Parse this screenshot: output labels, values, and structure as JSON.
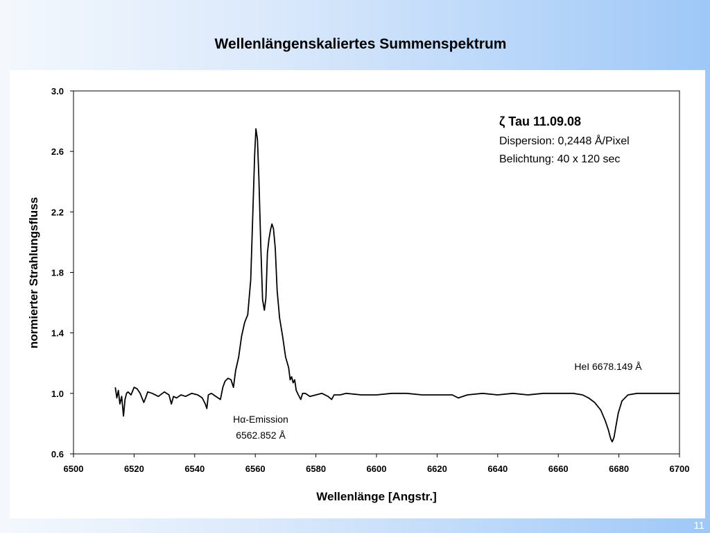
{
  "slide": {
    "title": "Wellenlängenskaliertes Summenspektrum",
    "page_number": "11"
  },
  "chart_data": {
    "type": "line",
    "xlabel": "Wellenlänge [Angstr.]",
    "ylabel": "normierter Strahlungsfluss",
    "xlim": [
      6500,
      6700
    ],
    "ylim": [
      0.6,
      3.0
    ],
    "x_ticks": [
      "6500",
      "6520",
      "6540",
      "6560",
      "6580",
      "6600",
      "6620",
      "6640",
      "6660",
      "6680",
      "6700"
    ],
    "y_ticks": [
      "0.6",
      "1.0",
      "1.4",
      "1.8",
      "2.2",
      "2.6",
      "3.0"
    ],
    "grid": false,
    "legend": "none",
    "line_color": "#000000",
    "info_box": {
      "line1": "ζ Tau 11.09.08",
      "line2": "Dispersion: 0,2448 Å/Pixel",
      "line3": "Belichtung: 40 x 120 sec"
    },
    "annotations": {
      "halpha_line1": "Hα-Emission",
      "halpha_line2": "6562.852 Å",
      "hei": "HeI 6678.149 Å"
    },
    "series": [
      {
        "x": [
          6513.8,
          6514.3,
          6514.8,
          6515.3,
          6515.9,
          6516.5,
          6517.0,
          6517.5,
          6518.0,
          6519.0,
          6520.0,
          6521.0,
          6522.0,
          6523.2,
          6523.8,
          6524.5,
          6526.0,
          6528.0,
          6530.0,
          6531.5,
          6532.3,
          6533.0,
          6534.0,
          6535.5,
          6537.0,
          6539.0,
          6541.0,
          6542.5,
          6543.5,
          6544.0,
          6544.5,
          6545.5,
          6547.0,
          6548.5,
          6549.3,
          6550.0,
          6551.0,
          6552.0,
          6552.8,
          6553.5,
          6554.5,
          6555.5,
          6556.5,
          6557.5,
          6558.5,
          6559.2,
          6559.8,
          6560.2,
          6560.7,
          6561.2,
          6561.8,
          6562.4,
          6563.0,
          6563.5,
          6564.0,
          6564.5,
          6565.0,
          6565.5,
          6566.0,
          6566.6,
          6567.2,
          6568.0,
          6569.0,
          6570.0,
          6571.0,
          6571.5,
          6572.0,
          6572.5,
          6573.0,
          6573.5,
          6574.2,
          6575.0,
          6575.6,
          6576.5,
          6578.0,
          6580.0,
          6582.0,
          6584.0,
          6585.2,
          6586.0,
          6588.0,
          6590.0,
          6595.0,
          6600.0,
          6605.0,
          6610.0,
          6615.0,
          6620.0,
          6625.0,
          6627.0,
          6630.0,
          6635.0,
          6640.0,
          6645.0,
          6650.0,
          6655.0,
          6660.0,
          6665.0,
          6668.0,
          6670.0,
          6672.0,
          6674.0,
          6675.5,
          6676.5,
          6677.3,
          6677.8,
          6678.4,
          6679.0,
          6679.8,
          6681.0,
          6683.0,
          6686.0,
          6690.0,
          6695.0,
          6700.0
        ],
        "y": [
          1.04,
          0.97,
          1.02,
          0.93,
          0.98,
          0.85,
          0.96,
          1.0,
          1.01,
          0.99,
          1.04,
          1.03,
          1.0,
          0.94,
          0.97,
          1.01,
          1.0,
          0.98,
          1.01,
          0.99,
          0.93,
          0.98,
          0.97,
          0.99,
          0.98,
          1.0,
          0.99,
          0.97,
          0.93,
          0.9,
          0.99,
          1.0,
          0.98,
          0.96,
          1.04,
          1.08,
          1.1,
          1.09,
          1.04,
          1.15,
          1.24,
          1.38,
          1.47,
          1.52,
          1.75,
          2.2,
          2.58,
          2.75,
          2.68,
          2.42,
          1.98,
          1.62,
          1.55,
          1.63,
          1.93,
          2.02,
          2.08,
          2.12,
          2.09,
          1.96,
          1.68,
          1.5,
          1.38,
          1.24,
          1.17,
          1.09,
          1.11,
          1.07,
          1.09,
          1.02,
          0.99,
          0.96,
          1.0,
          1.0,
          0.98,
          0.99,
          1.0,
          0.98,
          0.96,
          0.99,
          0.99,
          1.0,
          0.99,
          0.99,
          1.0,
          1.0,
          0.99,
          0.99,
          0.99,
          0.97,
          0.99,
          1.0,
          0.99,
          1.0,
          0.99,
          1.0,
          1.0,
          1.0,
          0.99,
          0.97,
          0.94,
          0.89,
          0.82,
          0.76,
          0.7,
          0.68,
          0.71,
          0.78,
          0.87,
          0.95,
          0.99,
          1.0,
          1.0,
          1.0,
          1.0
        ]
      }
    ]
  }
}
